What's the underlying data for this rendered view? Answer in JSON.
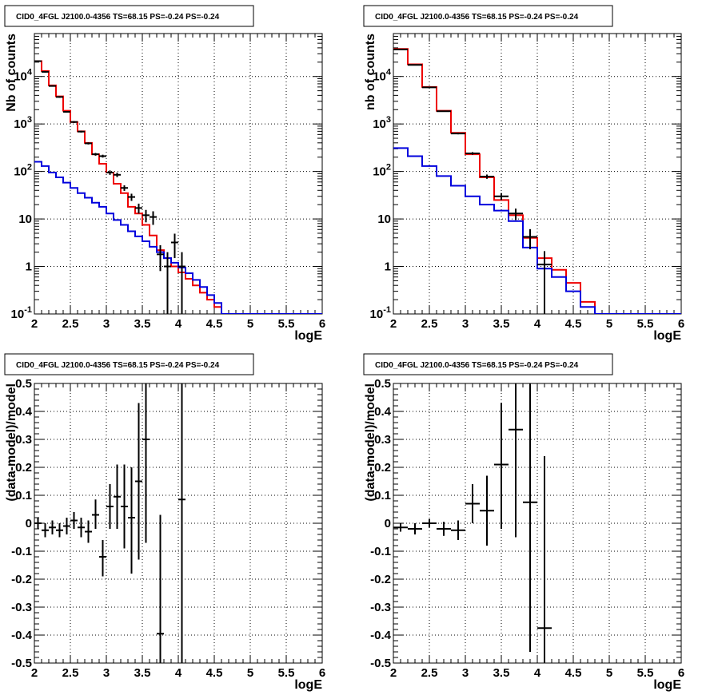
{
  "chart_data": [
    {
      "type": "line",
      "title": "CID0_4FGL J2100.0-4356 TS=68.15 PS=-0.24 PS=-0.24",
      "xlabel": "logE",
      "ylabel": "Nb of counts",
      "yscale": "log",
      "xlim": [
        2,
        6
      ],
      "ylim": [
        0.1,
        80000
      ],
      "x_ticks": [
        "2",
        "2.5",
        "3",
        "3.5",
        "4",
        "4.5",
        "5",
        "5.5",
        "6"
      ],
      "y_ticks": [
        {
          "base": "10",
          "exp": "-1",
          "value": 0.1
        },
        {
          "base": "1",
          "exp": "",
          "value": 1
        },
        {
          "base": "10",
          "exp": "",
          "value": 10
        },
        {
          "base": "10",
          "exp": "2",
          "value": 100
        },
        {
          "base": "10",
          "exp": "3",
          "value": 1000
        },
        {
          "base": "10",
          "exp": "4",
          "value": 10000
        }
      ],
      "grid": true,
      "bin_edges": [
        2.0,
        2.1,
        2.2,
        2.3,
        2.4,
        2.5,
        2.6,
        2.7,
        2.8,
        2.9,
        3.0,
        3.1,
        3.2,
        3.3,
        3.4,
        3.5,
        3.6,
        3.7,
        3.8,
        3.9,
        4.0,
        4.1,
        4.2,
        4.3,
        4.4,
        4.5,
        4.6,
        4.7,
        4.8,
        4.9,
        5.0,
        5.1,
        5.2,
        5.3,
        5.4,
        5.5,
        5.6,
        5.7,
        5.8,
        5.9,
        6.0
      ],
      "series": [
        {
          "color": "#ee0000",
          "style": "step",
          "values": [
            21000,
            13000,
            6500,
            3800,
            1900,
            1100,
            700,
            400,
            230,
            145,
            95,
            55,
            35,
            18,
            13,
            7.5,
            4.5,
            2.2,
            1.5,
            1.0,
            0.75,
            0.55,
            0.4,
            0.28,
            0.2,
            0.14,
            0.1,
            0.1,
            0.1,
            0.1,
            0.1,
            0.1,
            0.1,
            0.1,
            0.1,
            0.1,
            0.1,
            0.1,
            0.1,
            0.1
          ]
        },
        {
          "color": "#0000dd",
          "style": "step",
          "values": [
            160,
            130,
            95,
            75,
            58,
            45,
            35,
            28,
            22,
            18,
            13,
            9.5,
            7.5,
            5.5,
            4.3,
            3.4,
            2.6,
            2.0,
            1.5,
            1.2,
            0.95,
            0.72,
            0.52,
            0.37,
            0.25,
            0.17,
            0.1,
            0.1,
            0.1,
            0.1,
            0.1,
            0.1,
            0.1,
            0.1,
            0.1,
            0.1,
            0.1,
            0.1,
            0.1,
            0.1
          ]
        }
      ],
      "points": [
        {
          "x": 2.05,
          "xerr": 0.05,
          "y": 21000,
          "ylo": 20500,
          "yhi": 21500
        },
        {
          "x": 2.15,
          "xerr": 0.05,
          "y": 12500,
          "ylo": 12000,
          "yhi": 13000
        },
        {
          "x": 2.25,
          "xerr": 0.05,
          "y": 6300,
          "ylo": 6100,
          "yhi": 6500
        },
        {
          "x": 2.35,
          "xerr": 0.05,
          "y": 3700,
          "ylo": 3550,
          "yhi": 3850
        },
        {
          "x": 2.45,
          "xerr": 0.05,
          "y": 1800,
          "ylo": 1730,
          "yhi": 1870
        },
        {
          "x": 2.55,
          "xerr": 0.05,
          "y": 1100,
          "ylo": 1050,
          "yhi": 1150
        },
        {
          "x": 2.65,
          "xerr": 0.05,
          "y": 690,
          "ylo": 660,
          "yhi": 720
        },
        {
          "x": 2.75,
          "xerr": 0.05,
          "y": 390,
          "ylo": 370,
          "yhi": 410
        },
        {
          "x": 2.85,
          "xerr": 0.05,
          "y": 230,
          "ylo": 215,
          "yhi": 245
        },
        {
          "x": 2.95,
          "xerr": 0.05,
          "y": 210,
          "ylo": 196,
          "yhi": 225
        },
        {
          "x": 3.05,
          "xerr": 0.05,
          "y": 95,
          "ylo": 85,
          "yhi": 105
        },
        {
          "x": 3.15,
          "xerr": 0.05,
          "y": 85,
          "ylo": 76,
          "yhi": 94
        },
        {
          "x": 3.25,
          "xerr": 0.05,
          "y": 45,
          "ylo": 39,
          "yhi": 51
        },
        {
          "x": 3.35,
          "xerr": 0.05,
          "y": 29,
          "ylo": 24,
          "yhi": 34
        },
        {
          "x": 3.45,
          "xerr": 0.05,
          "y": 17,
          "ylo": 13,
          "yhi": 21
        },
        {
          "x": 3.55,
          "xerr": 0.05,
          "y": 12,
          "ylo": 8.5,
          "yhi": 15.5
        },
        {
          "x": 3.65,
          "xerr": 0.05,
          "y": 11,
          "ylo": 7.5,
          "yhi": 14.5
        },
        {
          "x": 3.75,
          "xerr": 0.05,
          "y": 1.8,
          "ylo": 0.8,
          "yhi": 2.8
        },
        {
          "x": 3.85,
          "xerr": 0.05,
          "y": 1.0,
          "ylo": 0.1,
          "yhi": 2.0
        },
        {
          "x": 3.95,
          "xerr": 0.05,
          "y": 3.2,
          "ylo": 1.5,
          "yhi": 4.9
        },
        {
          "x": 4.05,
          "xerr": 0.05,
          "y": 1.0,
          "ylo": 0.1,
          "yhi": 2.0
        }
      ]
    },
    {
      "type": "line",
      "title": "CID0_4FGL J2100.0-4356 TS=68.15 PS=-0.24 PS=-0.24",
      "xlabel": "logE",
      "ylabel": "nb of counts",
      "yscale": "log",
      "xlim": [
        2,
        6
      ],
      "ylim": [
        0.1,
        80000
      ],
      "x_ticks": [
        "2",
        "2.5",
        "3",
        "3.5",
        "4",
        "4.5",
        "5",
        "5.5",
        "6"
      ],
      "y_ticks": [
        {
          "base": "10",
          "exp": "-1",
          "value": 0.1
        },
        {
          "base": "1",
          "exp": "",
          "value": 1
        },
        {
          "base": "10",
          "exp": "",
          "value": 10
        },
        {
          "base": "10",
          "exp": "2",
          "value": 100
        },
        {
          "base": "10",
          "exp": "3",
          "value": 1000
        },
        {
          "base": "10",
          "exp": "4",
          "value": 10000
        }
      ],
      "grid": true,
      "bin_edges": [
        2.0,
        2.2,
        2.4,
        2.6,
        2.8,
        3.0,
        3.2,
        3.4,
        3.6,
        3.8,
        4.0,
        4.2,
        4.4,
        4.6,
        4.8,
        5.0,
        5.2,
        5.4,
        5.6,
        5.8,
        6.0
      ],
      "series": [
        {
          "color": "#ee0000",
          "style": "step",
          "values": [
            38000,
            18000,
            6000,
            1900,
            650,
            230,
            75,
            25,
            12,
            4.0,
            1.5,
            0.85,
            0.45,
            0.18,
            0.1,
            0.1,
            0.1,
            0.1,
            0.1,
            0.1
          ]
        },
        {
          "color": "#0000dd",
          "style": "step",
          "values": [
            310,
            210,
            130,
            80,
            50,
            30,
            20,
            15,
            9,
            2.5,
            0.9,
            0.6,
            0.3,
            0.14,
            0.1,
            0.1,
            0.1,
            0.1,
            0.1,
            0.1
          ]
        }
      ],
      "points": [
        {
          "x": 2.1,
          "xerr": 0.1,
          "y": 37000,
          "ylo": 36600,
          "yhi": 37400
        },
        {
          "x": 2.3,
          "xerr": 0.1,
          "y": 17500,
          "ylo": 17200,
          "yhi": 17800
        },
        {
          "x": 2.5,
          "xerr": 0.1,
          "y": 5900,
          "ylo": 5800,
          "yhi": 6000
        },
        {
          "x": 2.7,
          "xerr": 0.1,
          "y": 1850,
          "ylo": 1800,
          "yhi": 1900
        },
        {
          "x": 2.9,
          "xerr": 0.1,
          "y": 630,
          "ylo": 605,
          "yhi": 655
        },
        {
          "x": 3.1,
          "xerr": 0.1,
          "y": 240,
          "ylo": 225,
          "yhi": 255
        },
        {
          "x": 3.3,
          "xerr": 0.1,
          "y": 78,
          "ylo": 70,
          "yhi": 86
        },
        {
          "x": 3.5,
          "xerr": 0.1,
          "y": 30,
          "ylo": 25,
          "yhi": 35
        },
        {
          "x": 3.7,
          "xerr": 0.1,
          "y": 13,
          "ylo": 9.5,
          "yhi": 16.5
        },
        {
          "x": 3.9,
          "xerr": 0.1,
          "y": 4.2,
          "ylo": 2.3,
          "yhi": 6.1
        },
        {
          "x": 4.1,
          "xerr": 0.1,
          "y": 1.1,
          "ylo": 0.1,
          "yhi": 2.1
        }
      ]
    },
    {
      "type": "scatter",
      "title": "CID0_4FGL J2100.0-4356 TS=68.15 PS=-0.24 PS=-0.24",
      "xlabel": "logE",
      "ylabel": "(data-model)/model",
      "yscale": "linear",
      "xlim": [
        2,
        6
      ],
      "ylim": [
        -0.5,
        0.5
      ],
      "x_ticks": [
        "2",
        "2.5",
        "3",
        "3.5",
        "4",
        "4.5",
        "5",
        "5.5",
        "6"
      ],
      "y_ticks": [
        "-0.5",
        "-0.4",
        "-0.3",
        "-0.2",
        "-0.1",
        "0",
        "0.1",
        "0.2",
        "0.3",
        "0.4",
        "0.5"
      ],
      "grid": true,
      "points": [
        {
          "x": 2.05,
          "xerr": 0.05,
          "y": 0.0,
          "ylo": -0.02,
          "yhi": 0.02
        },
        {
          "x": 2.15,
          "xerr": 0.05,
          "y": -0.025,
          "ylo": -0.05,
          "yhi": 0.0
        },
        {
          "x": 2.25,
          "xerr": 0.05,
          "y": -0.015,
          "ylo": -0.04,
          "yhi": 0.01
        },
        {
          "x": 2.35,
          "xerr": 0.05,
          "y": -0.025,
          "ylo": -0.05,
          "yhi": 0.0
        },
        {
          "x": 2.45,
          "xerr": 0.05,
          "y": -0.01,
          "ylo": -0.04,
          "yhi": 0.02
        },
        {
          "x": 2.55,
          "xerr": 0.05,
          "y": 0.01,
          "ylo": -0.02,
          "yhi": 0.04
        },
        {
          "x": 2.65,
          "xerr": 0.05,
          "y": -0.015,
          "ylo": -0.05,
          "yhi": 0.02
        },
        {
          "x": 2.75,
          "xerr": 0.05,
          "y": -0.03,
          "ylo": -0.07,
          "yhi": 0.01
        },
        {
          "x": 2.85,
          "xerr": 0.05,
          "y": 0.03,
          "ylo": -0.02,
          "yhi": 0.085
        },
        {
          "x": 2.95,
          "xerr": 0.05,
          "y": -0.12,
          "ylo": -0.19,
          "yhi": -0.06
        },
        {
          "x": 3.05,
          "xerr": 0.05,
          "y": 0.06,
          "ylo": -0.02,
          "yhi": 0.14
        },
        {
          "x": 3.15,
          "xerr": 0.05,
          "y": 0.095,
          "ylo": -0.02,
          "yhi": 0.21
        },
        {
          "x": 3.25,
          "xerr": 0.05,
          "y": 0.06,
          "ylo": -0.09,
          "yhi": 0.21
        },
        {
          "x": 3.35,
          "xerr": 0.05,
          "y": 0.02,
          "ylo": -0.18,
          "yhi": 0.2
        },
        {
          "x": 3.45,
          "xerr": 0.05,
          "y": 0.15,
          "ylo": -0.13,
          "yhi": 0.43
        },
        {
          "x": 3.55,
          "xerr": 0.05,
          "y": 0.3,
          "ylo": -0.07,
          "yhi": 0.5
        },
        {
          "x": 3.75,
          "xerr": 0.05,
          "y": -0.395,
          "ylo": -0.5,
          "yhi": 0.03
        },
        {
          "x": 4.05,
          "xerr": 0.05,
          "y": 0.085,
          "ylo": -0.5,
          "yhi": 0.5
        }
      ]
    },
    {
      "type": "scatter",
      "title": "CID0_4FGL J2100.0-4356 TS=68.15 PS=-0.24 PS=-0.24",
      "xlabel": "logE",
      "ylabel": "(data-model)/model",
      "yscale": "linear",
      "xlim": [
        2,
        6
      ],
      "ylim": [
        -0.5,
        0.5
      ],
      "x_ticks": [
        "2",
        "2.5",
        "3",
        "3.5",
        "4",
        "4.5",
        "5",
        "5.5",
        "6"
      ],
      "y_ticks": [
        "-0.5",
        "-0.4",
        "-0.3",
        "-0.2",
        "-0.1",
        "0",
        "0.1",
        "0.2",
        "0.3",
        "0.4",
        "0.5"
      ],
      "grid": true,
      "points": [
        {
          "x": 2.1,
          "xerr": 0.1,
          "y": -0.015,
          "ylo": -0.03,
          "yhi": 0.0
        },
        {
          "x": 2.3,
          "xerr": 0.1,
          "y": -0.02,
          "ylo": -0.04,
          "yhi": 0.0
        },
        {
          "x": 2.5,
          "xerr": 0.1,
          "y": 0.0,
          "ylo": -0.015,
          "yhi": 0.015
        },
        {
          "x": 2.7,
          "xerr": 0.1,
          "y": -0.02,
          "ylo": -0.045,
          "yhi": 0.005
        },
        {
          "x": 2.9,
          "xerr": 0.1,
          "y": -0.025,
          "ylo": -0.06,
          "yhi": 0.01
        },
        {
          "x": 3.1,
          "xerr": 0.1,
          "y": 0.07,
          "ylo": 0.0,
          "yhi": 0.14
        },
        {
          "x": 3.3,
          "xerr": 0.1,
          "y": 0.045,
          "ylo": -0.08,
          "yhi": 0.17
        },
        {
          "x": 3.5,
          "xerr": 0.1,
          "y": 0.21,
          "ylo": -0.02,
          "yhi": 0.43
        },
        {
          "x": 3.7,
          "xerr": 0.1,
          "y": 0.335,
          "ylo": -0.05,
          "yhi": 0.5
        },
        {
          "x": 3.9,
          "xerr": 0.1,
          "y": 0.075,
          "ylo": -0.46,
          "yhi": 0.5
        },
        {
          "x": 4.1,
          "xerr": 0.1,
          "y": -0.375,
          "ylo": -0.5,
          "yhi": 0.24
        }
      ]
    }
  ]
}
